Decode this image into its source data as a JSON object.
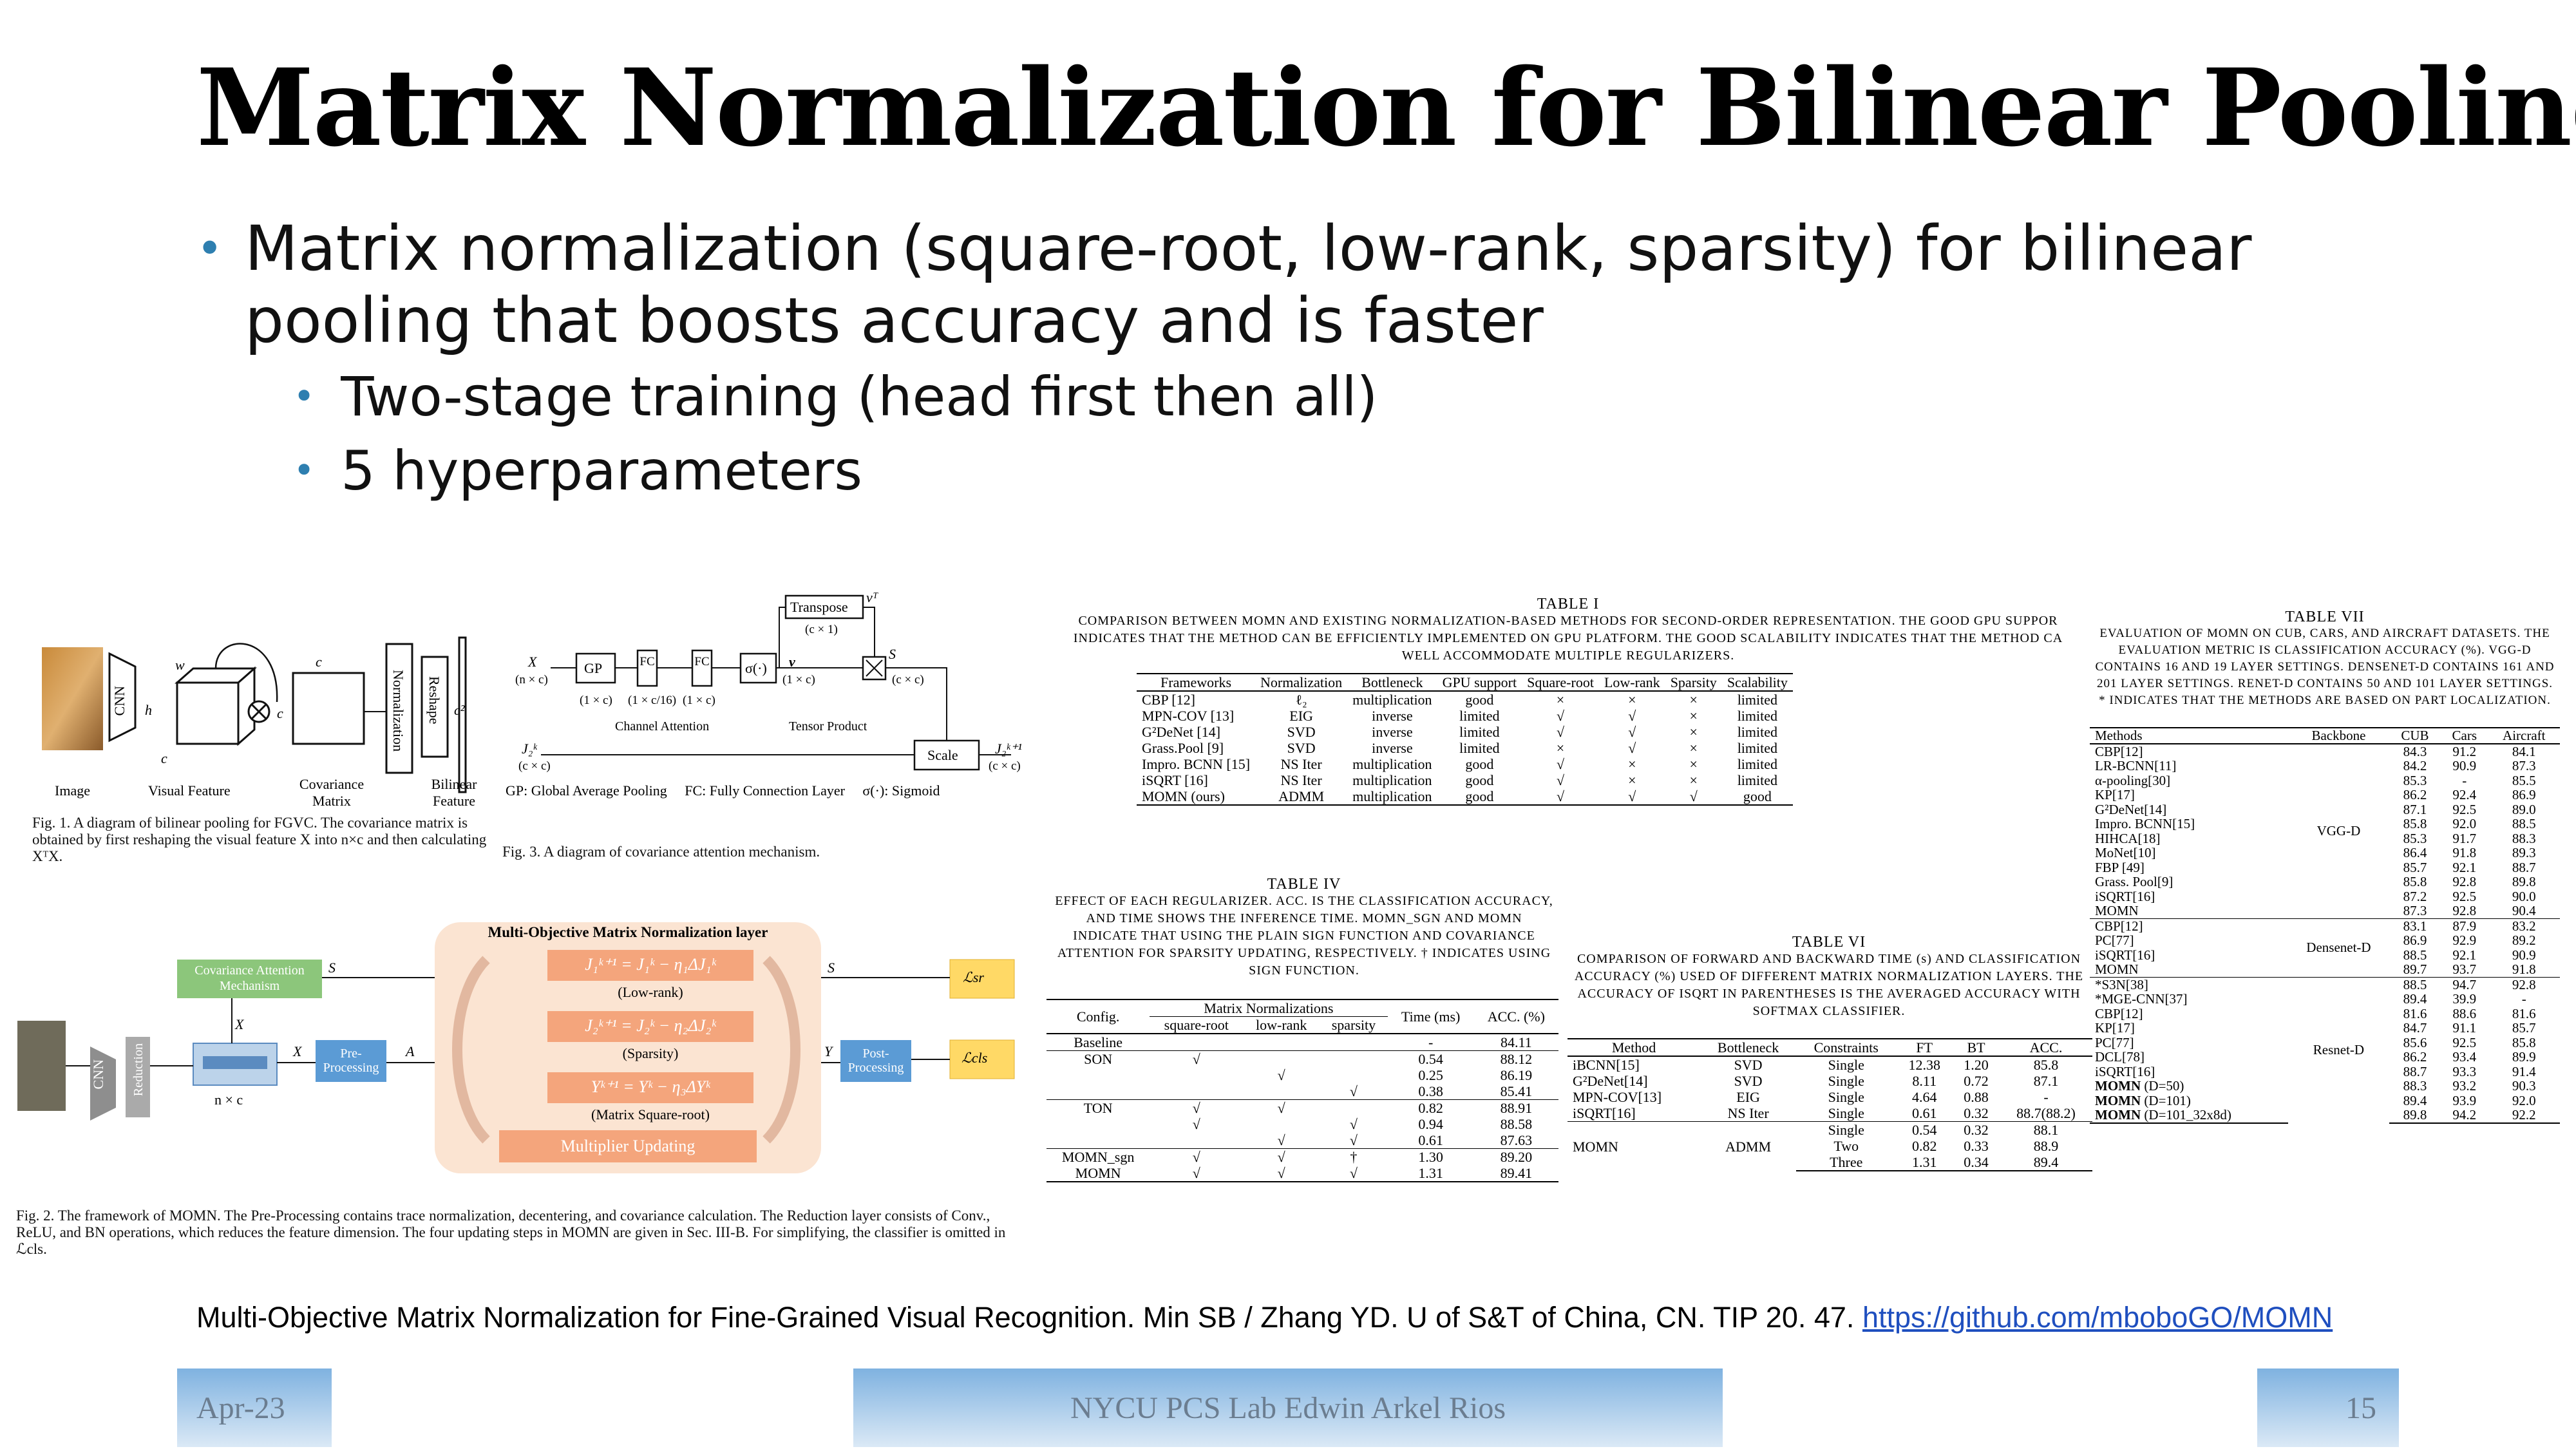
{
  "slide": {
    "title": "Matrix Normalization for Bilinear Pooling",
    "bullets": [
      {
        "level": 1,
        "text": "Matrix normalization (square-root, low-rank, sparsity) for bilinear pooling that boosts accuracy and is faster"
      },
      {
        "level": 2,
        "text": "Two-stage training (head first then all)"
      },
      {
        "level": 2,
        "text": "5 hyperparameters"
      }
    ],
    "reference_text": "Multi-Objective Matrix Normalization for Fine-Grained Visual Recognition. Min SB / Zhang YD. U of S&T of China, CN. TIP 20. 47.",
    "reference_link": "https://github.com/mboboGO/MOMN",
    "footer": {
      "date": "Apr-23",
      "center": "NYCU PCS Lab Edwin Arkel Rios",
      "page": "15"
    },
    "accent_color": "#2e7fb0"
  },
  "fig1": {
    "labels": {
      "image": "Image",
      "visual": "Visual Feature",
      "cov": "Covariance Matrix",
      "bil": "Bilinear Feature",
      "cnn": "CNN",
      "norm": "Normalization",
      "reshape": "Reshape",
      "w": "w",
      "h": "h",
      "c": "c",
      "c2": "c²",
      "cc": "c",
      "c3": "c"
    },
    "caption": "Fig. 1.  A diagram of bilinear pooling for FGVC. The covariance matrix is obtained by first reshaping the visual feature X into n×c and then calculating XᵀX."
  },
  "fig3": {
    "labels": {
      "gp": "GP",
      "fc1": "FC",
      "fc2": "FC",
      "sig": "σ(·)",
      "transpose": "Transpose",
      "scale": "Scale",
      "x": "X",
      "xdim": "(n × c)",
      "j": "J₂ᵏ",
      "jdim": "(c × c)",
      "v": "v",
      "vt": "vᵀ",
      "s": "S",
      "sdim": "(c × c)",
      "jout": "J₂ᵏ⁺¹",
      "joutdim": "(c × c)",
      "d1": "(1 × c)",
      "d2": "(1 × c/16)",
      "d3": "(1 × c)",
      "d4": "(1 × c)",
      "d5": "(c × 1)",
      "channel": "Channel Attention",
      "tensor": "Tensor Product",
      "legend": "GP: Global Average Pooling     FC: Fully Connection Layer     σ(·): Sigmoid"
    },
    "caption": "Fig. 3.  A diagram of covariance attention mechanism."
  },
  "fig2": {
    "layer_title": "Multi-Objective Matrix Normalization layer",
    "eq1": "J₁ᵏ⁺¹ = J₁ᵏ − η₁ΔJ₁ᵏ",
    "eq1_label": "(Low-rank)",
    "eq2": "J₂ᵏ⁺¹ = J₂ᵏ − η₂ΔJ₂ᵏ",
    "eq2_label": "(Sparsity)",
    "eq3": "Yᵏ⁺¹ = Yᵏ − η₃ΔYᵏ",
    "eq3_label": "(Matrix Square-root)",
    "mult": "Multiplier Updating",
    "cov_att": "Covariance Attention Mechanism",
    "pre": "Pre-Processing",
    "post": "Post-Processing",
    "cnn": "CNN",
    "reduction": "Reduction",
    "nxc": "n × c",
    "s1": "S",
    "s2": "S",
    "x": "X",
    "x2": "X",
    "a": "A",
    "y": "Y",
    "lsr": "ℒsr",
    "lcls": "ℒcls",
    "caption": "Fig. 2.  The framework of MOMN. The Pre-Processing contains trace normalization, decentering, and covariance calculation. The Reduction layer consists of Conv., ReLU, and BN operations, which reduces the feature dimension. The four updating steps in MOMN are given in Sec. III-B. For simplifying, the classifier is omitted in ℒcls."
  },
  "table1": {
    "head": "TABLE I",
    "caption": "COMPARISON BETWEEN MOMN AND EXISTING NORMALIZATION-BASED METHODS FOR SECOND-ORDER REPRESENTATION. THE GOOD GPU SUPPOR INDICATES THAT THE METHOD CAN BE EFFICIENTLY IMPLEMENTED ON GPU PLATFORM. THE GOOD SCALABILITY INDICATES THAT THE METHOD CA WELL ACCOMMODATE MULTIPLE REGULARIZERS.",
    "columns": [
      "Frameworks",
      "Normalization",
      "Bottleneck",
      "GPU support",
      "Square-root",
      "Low-rank",
      "Sparsity",
      "Scalability"
    ],
    "rows": [
      [
        "CBP [12]",
        "ℓ₂",
        "multiplication",
        "good",
        "×",
        "×",
        "×",
        "limited"
      ],
      [
        "MPN-COV [13]",
        "EIG",
        "inverse",
        "limited",
        "√",
        "√",
        "×",
        "limited"
      ],
      [
        "G²DeNet [14]",
        "SVD",
        "inverse",
        "limited",
        "√",
        "√",
        "×",
        "limited"
      ],
      [
        "Grass.Pool [9]",
        "SVD",
        "inverse",
        "limited",
        "×",
        "√",
        "×",
        "limited"
      ],
      [
        "Impro. BCNN [15]",
        "NS Iter",
        "multiplication",
        "good",
        "√",
        "×",
        "×",
        "limited"
      ],
      [
        "iSQRT [16]",
        "NS Iter",
        "multiplication",
        "good",
        "√",
        "×",
        "×",
        "limited"
      ],
      [
        "MOMN (ours)",
        "ADMM",
        "multiplication",
        "good",
        "√",
        "√",
        "√",
        "good"
      ]
    ]
  },
  "table4": {
    "head": "TABLE IV",
    "caption": "EFFECT OF EACH REGULARIZER. ACC. IS THE CLASSIFICATION ACCURACY, AND TIME SHOWS THE INFERENCE TIME. MOMN_SGN AND MOMN INDICATE THAT USING THE PLAIN SIGN FUNCTION AND COVARIANCE ATTENTION FOR SPARSITY UPDATING, RESPECTIVELY. † INDICATES USING SIGN FUNCTION.",
    "col_config": "Config.",
    "col_group": "Matrix Normalizations",
    "sub": [
      "square-root",
      "low-rank",
      "sparsity"
    ],
    "col_time": "Time (ms)",
    "col_acc": "ACC. (%)",
    "rows": [
      {
        "cfg": "Baseline",
        "sq": "",
        "lr": "",
        "sp": "",
        "time": "-",
        "acc": "84.11",
        "bt": true,
        "bold": []
      },
      {
        "cfg": "SON",
        "sq": "√",
        "lr": "",
        "sp": "",
        "time": "0.54",
        "acc": "88.12",
        "bt": true,
        "bold": [
          "acc"
        ]
      },
      {
        "cfg": "",
        "sq": "",
        "lr": "√",
        "sp": "",
        "time": "0.25",
        "acc": "86.19",
        "bt": false,
        "bold": [
          "time"
        ]
      },
      {
        "cfg": "",
        "sq": "",
        "lr": "",
        "sp": "√",
        "time": "0.38",
        "acc": "85.41",
        "bt": false,
        "bold": []
      },
      {
        "cfg": "TON",
        "sq": "√",
        "lr": "√",
        "sp": "",
        "time": "0.82",
        "acc": "88.91",
        "bt": true,
        "bold": [
          "acc"
        ]
      },
      {
        "cfg": "",
        "sq": "√",
        "lr": "",
        "sp": "√",
        "time": "0.94",
        "acc": "88.58",
        "bt": false,
        "bold": []
      },
      {
        "cfg": "",
        "sq": "",
        "lr": "√",
        "sp": "√",
        "time": "0.61",
        "acc": "87.63",
        "bt": false,
        "bold": [
          "time"
        ]
      },
      {
        "cfg": "MOMN_sgn",
        "sq": "√",
        "lr": "√",
        "sp": "†",
        "time": "1.30",
        "acc": "89.20",
        "bt": true,
        "bold": [
          "time"
        ]
      },
      {
        "cfg": "MOMN",
        "sq": "√",
        "lr": "√",
        "sp": "√",
        "time": "1.31",
        "acc": "89.41",
        "bt": false,
        "bold": [
          "acc"
        ]
      }
    ]
  },
  "table6": {
    "head": "TABLE VI",
    "caption": "COMPARISON OF FORWARD AND BACKWARD TIME (s) AND CLASSIFICATION ACCURACY (%) USED OF DIFFERENT MATRIX NORMALIZATION LAYERS. THE ACCURACY OF ISQRT IN PARENTHESES IS THE AVERAGED ACCURACY WITH SOFTMAX CLASSIFIER.",
    "columns": [
      "Method",
      "Bottleneck",
      "Constraints",
      "FT",
      "BT",
      "ACC."
    ],
    "rows": [
      [
        "iBCNN[15]",
        "SVD",
        "Single",
        "12.38",
        "1.20",
        "85.8"
      ],
      [
        "G²DeNet[14]",
        "SVD",
        "Single",
        "8.11",
        "0.72",
        "87.1"
      ],
      [
        "MPN-COV[13]",
        "EIG",
        "Single",
        "4.64",
        "0.88",
        "-"
      ],
      [
        "iSQRT[16]",
        "NS Iter",
        "Single",
        "0.61",
        "0.32",
        "88.7(88.2)"
      ]
    ],
    "momn": {
      "method": "MOMN",
      "bottleneck": "ADMM",
      "rows": [
        [
          "Single",
          "0.54",
          "0.32",
          "88.1"
        ],
        [
          "Two",
          "0.82",
          "0.33",
          "88.9"
        ],
        [
          "Three",
          "1.31",
          "0.34",
          "89.4"
        ]
      ]
    }
  },
  "table7": {
    "head": "TABLE VII",
    "caption": "EVALUATION OF MOMN ON CUB, CARS, AND AIRCRAFT DATASETS. THE EVALUATION METRIC IS CLASSIFICATION ACCURACY (%). VGG-D CONTAINS 16 AND 19 LAYER SETTINGS. DENSENET-D CONTAINS 161 AND 201 LAYER SETTINGS. RENET-D CONTAINS 50 AND 101 LAYER SETTINGS. * INDICATES THAT THE METHODS ARE BASED ON PART LOCALIZATION.",
    "columns": [
      "Methods",
      "Backbone",
      "CUB",
      "Cars",
      "Aircraft"
    ],
    "groups": [
      {
        "backbone": "VGG-D",
        "rows": [
          [
            "CBP[12]",
            "84.3",
            "91.2",
            "84.1"
          ],
          [
            "LR-BCNN[11]",
            "84.2",
            "90.9",
            "87.3"
          ],
          [
            "α-pooling[30]",
            "85.3",
            "-",
            "85.5"
          ],
          [
            "KP[17]",
            "86.2",
            "92.4",
            "86.9"
          ],
          [
            "G²DeNet[14]",
            "87.1",
            "92.5",
            "89.0"
          ],
          [
            "Impro. BCNN[15]",
            "85.8",
            "92.0",
            "88.5"
          ],
          [
            "HIHCA[18]",
            "85.3",
            "91.7",
            "88.3"
          ],
          [
            "MoNet[10]",
            "86.4",
            "91.8",
            "89.3"
          ],
          [
            "FBP [49]",
            "85.7",
            "92.1",
            "88.7"
          ],
          [
            "Grass. Pool[9]",
            "85.8",
            "92.8",
            "89.8"
          ],
          [
            "iSQRT[16]",
            "87.2",
            "92.5",
            "90.0"
          ],
          [
            "MOMN",
            "87.3",
            "92.8",
            "90.4"
          ]
        ]
      },
      {
        "backbone": "Densenet-D",
        "rows": [
          [
            "CBP[12]",
            "83.1",
            "87.9",
            "83.2"
          ],
          [
            "PC[77]",
            "86.9",
            "92.9",
            "89.2"
          ],
          [
            "iSQRT[16]",
            "88.5",
            "92.1",
            "90.9"
          ],
          [
            "MOMN",
            "89.7",
            "93.7",
            "91.8"
          ]
        ]
      },
      {
        "backbone": "Resnet-D",
        "rows": [
          [
            "*S3N[38]",
            "88.5",
            "94.7",
            "92.8"
          ],
          [
            "*MGE-CNN[37]",
            "89.4",
            "39.9",
            "-"
          ],
          [
            "CBP[12]",
            "81.6",
            "88.6",
            "81.6"
          ],
          [
            "KP[17]",
            "84.7",
            "91.1",
            "85.7"
          ],
          [
            "PC[77]",
            "85.6",
            "92.5",
            "85.8"
          ],
          [
            "DCL[78]",
            "86.2",
            "93.4",
            "89.9"
          ],
          [
            "iSQRT[16]",
            "88.7",
            "93.3",
            "91.4"
          ],
          [
            "MOMN (D=50)",
            "88.3",
            "93.2",
            "90.3"
          ],
          [
            "MOMN (D=101)",
            "89.4",
            "93.9",
            "92.0"
          ],
          [
            "MOMN (D=101_32x8d)",
            "89.8",
            "94.2",
            "92.2"
          ]
        ]
      }
    ]
  }
}
